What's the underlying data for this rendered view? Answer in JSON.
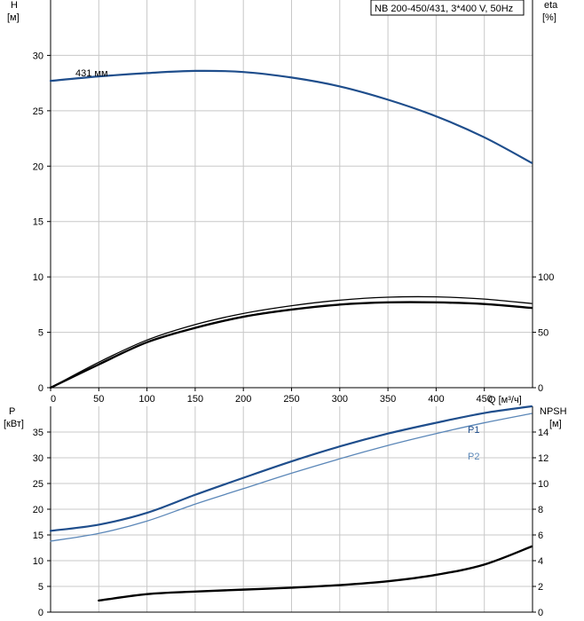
{
  "title_box": "NB 200-450/431, 3*400 V, 50Hz",
  "colors": {
    "dark_blue": "#1f4e8c",
    "light_blue": "#5b87b8",
    "black": "#000000",
    "grid": "#c8c8c8"
  },
  "chart_data": [
    {
      "type": "line",
      "panel": "top",
      "left_axis": {
        "label_line1": "H",
        "label_line2": "[м]",
        "ticks": [
          0,
          5,
          10,
          15,
          20,
          25,
          30
        ],
        "range": [
          0,
          35
        ]
      },
      "right_axis": {
        "label_line1": "eta",
        "label_line2": "[%]",
        "ticks": [
          0,
          50,
          100
        ],
        "range": [
          0,
          350
        ]
      },
      "x_axis": {
        "label": "Q [м³/ч]",
        "ticks": [
          0,
          50,
          100,
          150,
          200,
          250,
          300,
          350,
          400,
          450
        ],
        "range": [
          0,
          500
        ]
      },
      "grid": true,
      "series": [
        {
          "name": "431 мм",
          "axis": "left",
          "color": "dark_blue",
          "width": 2.2,
          "x": [
            0,
            50,
            100,
            150,
            200,
            250,
            300,
            350,
            400,
            450,
            499
          ],
          "y": [
            27.7,
            28.1,
            28.4,
            28.6,
            28.5,
            28.0,
            27.2,
            26.0,
            24.5,
            22.6,
            20.3
          ]
        },
        {
          "name": "",
          "axis": "right",
          "color": "black",
          "width": 1.3,
          "x": [
            0,
            50,
            100,
            150,
            200,
            250,
            300,
            350,
            400,
            450,
            499
          ],
          "y": [
            0,
            23,
            43,
            57,
            67,
            74,
            79,
            81.7,
            82,
            80,
            76
          ]
        },
        {
          "name": "",
          "axis": "right",
          "color": "black",
          "width": 2.4,
          "x": [
            0,
            50,
            100,
            150,
            200,
            250,
            300,
            350,
            400,
            450,
            499
          ],
          "y": [
            0,
            21,
            41,
            54,
            64,
            70.5,
            75,
            77,
            77,
            75.5,
            72
          ]
        }
      ]
    },
    {
      "type": "line",
      "panel": "bottom",
      "left_axis": {
        "label_line1": "P",
        "label_line2": "[кВт]",
        "ticks": [
          0,
          5,
          10,
          15,
          20,
          25,
          30,
          35
        ],
        "range": [
          0,
          40
        ]
      },
      "right_axis": {
        "label_line1": "NPSH",
        "label_line2": "[м]",
        "ticks": [
          0,
          2,
          4,
          6,
          8,
          10,
          12,
          14
        ],
        "range": [
          0,
          16
        ]
      },
      "x_axis": {
        "range": [
          0,
          500
        ]
      },
      "grid": true,
      "series": [
        {
          "name": "P1",
          "axis": "left",
          "color": "dark_blue",
          "width": 2.2,
          "x": [
            0,
            50,
            100,
            150,
            200,
            250,
            300,
            350,
            400,
            450,
            499
          ],
          "y": [
            15.8,
            17.0,
            19.3,
            22.8,
            26.1,
            29.3,
            32.2,
            34.7,
            36.8,
            38.7,
            40.0
          ]
        },
        {
          "name": "P2",
          "axis": "left",
          "color": "light_blue",
          "width": 1.3,
          "x": [
            0,
            50,
            100,
            150,
            200,
            250,
            300,
            350,
            400,
            450,
            499
          ],
          "y": [
            13.8,
            15.3,
            17.7,
            21.0,
            24.0,
            27.0,
            29.8,
            32.4,
            34.7,
            36.8,
            38.6
          ]
        },
        {
          "name": "",
          "axis": "right",
          "color": "black",
          "width": 2.4,
          "x": [
            50,
            100,
            150,
            200,
            250,
            300,
            350,
            400,
            450,
            499
          ],
          "y": [
            0.9,
            1.4,
            1.6,
            1.75,
            1.9,
            2.1,
            2.4,
            2.9,
            3.7,
            5.1
          ]
        }
      ]
    }
  ]
}
